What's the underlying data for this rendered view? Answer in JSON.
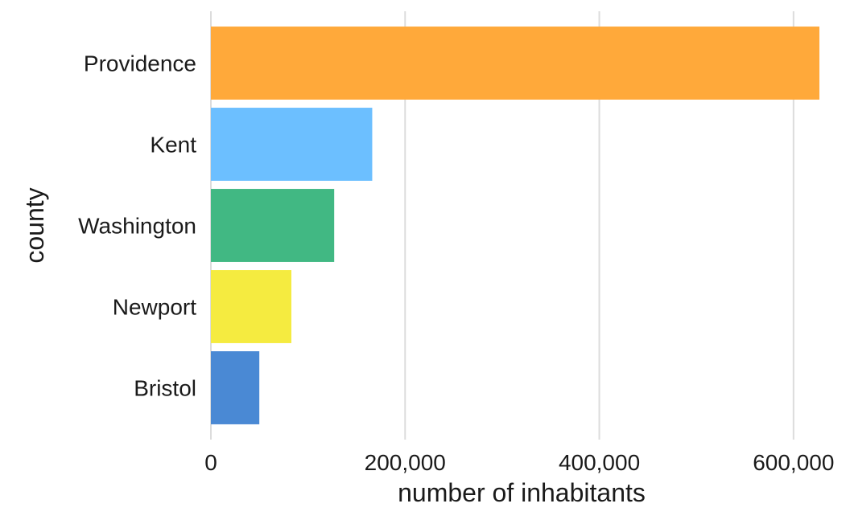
{
  "chart_data": {
    "type": "bar",
    "orientation": "horizontal",
    "categories": [
      "Providence",
      "Kent",
      "Washington",
      "Newport",
      "Bristol"
    ],
    "values": [
      626667,
      166158,
      126979,
      82888,
      49875
    ],
    "colors": [
      "#FFA93A",
      "#6CBFFF",
      "#41B883",
      "#F5EB40",
      "#4A89D4"
    ],
    "xlabel": "number of inhabitants",
    "ylabel": "county",
    "xlim": [
      0,
      626667
    ],
    "xticks": [
      0,
      200000,
      400000,
      600000
    ],
    "xtick_labels": [
      "0",
      "200,000",
      "400,000",
      "600,000"
    ],
    "grid": "vertical",
    "legend": "none"
  }
}
